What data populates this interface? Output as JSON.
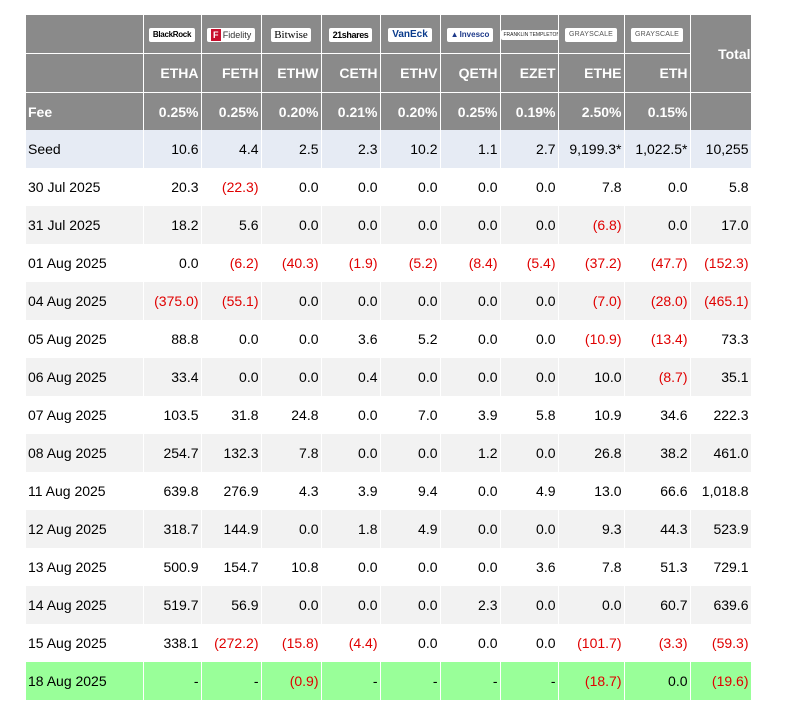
{
  "total_header": "Total",
  "fee_label": "Fee",
  "logos": [
    {
      "key": "blackrock",
      "text": "BlackRock"
    },
    {
      "key": "fidelity",
      "mark": "F",
      "text": "Fidelity"
    },
    {
      "key": "bitwise",
      "text": "Bitwise"
    },
    {
      "key": "21shares",
      "text": "21shares"
    },
    {
      "key": "vaneck",
      "text": "VanEck"
    },
    {
      "key": "invesco",
      "mark": "▲",
      "text": "Invesco"
    },
    {
      "key": "franklin",
      "text": "FRANKLIN TEMPLETON"
    },
    {
      "key": "grayscale",
      "text": "GRAYSCALE"
    },
    {
      "key": "grayscale2",
      "text": "GRAYSCALE"
    }
  ],
  "tickers": [
    "ETHA",
    "FETH",
    "ETHW",
    "CETH",
    "ETHV",
    "QETH",
    "EZET",
    "ETHE",
    "ETH"
  ],
  "fees": [
    "0.25%",
    "0.25%",
    "0.20%",
    "0.21%",
    "0.20%",
    "0.25%",
    "0.19%",
    "2.50%",
    "0.15%"
  ],
  "rows": [
    {
      "date": "Seed",
      "values": [
        "10.6",
        "4.4",
        "2.5",
        "2.3",
        "10.2",
        "1.1",
        "2.7",
        "9,199.3*",
        "1,022.5*"
      ],
      "total": "10,255"
    },
    {
      "date": "30 Jul 2025",
      "values": [
        "20.3",
        "(22.3)",
        "0.0",
        "0.0",
        "0.0",
        "0.0",
        "0.0",
        "7.8",
        "0.0"
      ],
      "total": "5.8"
    },
    {
      "date": "31 Jul 2025",
      "values": [
        "18.2",
        "5.6",
        "0.0",
        "0.0",
        "0.0",
        "0.0",
        "0.0",
        "(6.8)",
        "0.0"
      ],
      "total": "17.0"
    },
    {
      "date": "01 Aug 2025",
      "values": [
        "0.0",
        "(6.2)",
        "(40.3)",
        "(1.9)",
        "(5.2)",
        "(8.4)",
        "(5.4)",
        "(37.2)",
        "(47.7)"
      ],
      "total": "(152.3)"
    },
    {
      "date": "04 Aug 2025",
      "values": [
        "(375.0)",
        "(55.1)",
        "0.0",
        "0.0",
        "0.0",
        "0.0",
        "0.0",
        "(7.0)",
        "(28.0)"
      ],
      "total": "(465.1)"
    },
    {
      "date": "05 Aug 2025",
      "values": [
        "88.8",
        "0.0",
        "0.0",
        "3.6",
        "5.2",
        "0.0",
        "0.0",
        "(10.9)",
        "(13.4)"
      ],
      "total": "73.3"
    },
    {
      "date": "06 Aug 2025",
      "values": [
        "33.4",
        "0.0",
        "0.0",
        "0.4",
        "0.0",
        "0.0",
        "0.0",
        "10.0",
        "(8.7)"
      ],
      "total": "35.1"
    },
    {
      "date": "07 Aug 2025",
      "values": [
        "103.5",
        "31.8",
        "24.8",
        "0.0",
        "7.0",
        "3.9",
        "5.8",
        "10.9",
        "34.6"
      ],
      "total": "222.3"
    },
    {
      "date": "08 Aug 2025",
      "values": [
        "254.7",
        "132.3",
        "7.8",
        "0.0",
        "0.0",
        "1.2",
        "0.0",
        "26.8",
        "38.2"
      ],
      "total": "461.0"
    },
    {
      "date": "11 Aug 2025",
      "values": [
        "639.8",
        "276.9",
        "4.3",
        "3.9",
        "9.4",
        "0.0",
        "4.9",
        "13.0",
        "66.6"
      ],
      "total": "1,018.8"
    },
    {
      "date": "12 Aug 2025",
      "values": [
        "318.7",
        "144.9",
        "0.0",
        "1.8",
        "4.9",
        "0.0",
        "0.0",
        "9.3",
        "44.3"
      ],
      "total": "523.9"
    },
    {
      "date": "13 Aug 2025",
      "values": [
        "500.9",
        "154.7",
        "10.8",
        "0.0",
        "0.0",
        "0.0",
        "3.6",
        "7.8",
        "51.3"
      ],
      "total": "729.1"
    },
    {
      "date": "14 Aug 2025",
      "values": [
        "519.7",
        "56.9",
        "0.0",
        "0.0",
        "0.0",
        "2.3",
        "0.0",
        "0.0",
        "60.7"
      ],
      "total": "639.6"
    },
    {
      "date": "15 Aug 2025",
      "values": [
        "338.1",
        "(272.2)",
        "(15.8)",
        "(4.4)",
        "0.0",
        "0.0",
        "0.0",
        "(101.7)",
        "(3.3)"
      ],
      "total": "(59.3)"
    },
    {
      "date": "18 Aug 2025",
      "values": [
        "-",
        "-",
        "(0.9)",
        "-",
        "-",
        "-",
        "-",
        "(18.7)",
        "0.0"
      ],
      "total": "(19.6)"
    }
  ],
  "colors": {
    "header_bg": "#8a8a8a",
    "seed_bg": "#e6ebf4",
    "alt_bg": "#f2f2f2",
    "latest_bg": "#99ff99",
    "negative": "#e00000"
  }
}
